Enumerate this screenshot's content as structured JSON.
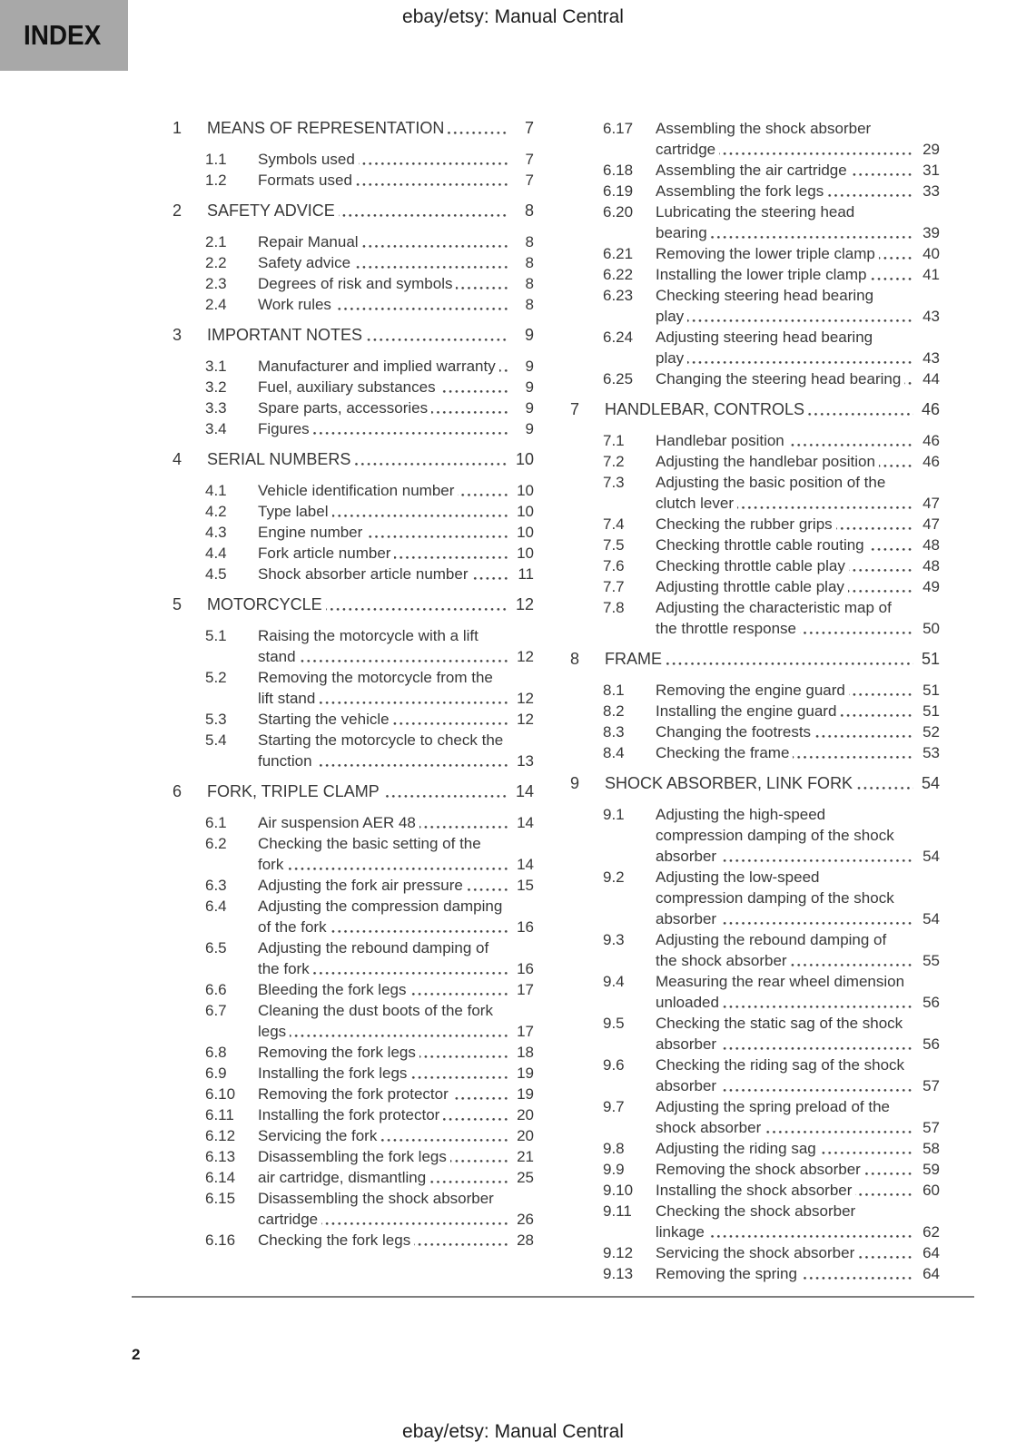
{
  "page_label": "INDEX",
  "header": {
    "title": "ebay/etsy: Manual Central"
  },
  "footer": {
    "title": "ebay/etsy: Manual Central",
    "page_number": "2"
  },
  "colors": {
    "index_tab_bg": "#a8a8a8",
    "body_text": "#383838",
    "rule": "#7e7e7e"
  },
  "toc": {
    "left_column": [
      {
        "num": "1",
        "title": "MEANS OF REPRESENTATION",
        "page": "7",
        "level": "chapter"
      },
      {
        "num": "1.1",
        "title": "Symbols used",
        "page": "7",
        "level": "item"
      },
      {
        "num": "1.2",
        "title": "Formats used",
        "page": "7",
        "level": "item"
      },
      {
        "num": "2",
        "title": "SAFETY ADVICE",
        "page": "8",
        "level": "chapter"
      },
      {
        "num": "2.1",
        "title": "Repair Manual",
        "page": "8",
        "level": "item"
      },
      {
        "num": "2.2",
        "title": "Safety advice",
        "page": "8",
        "level": "item"
      },
      {
        "num": "2.3",
        "title": "Degrees of risk and symbols",
        "page": "8",
        "level": "item"
      },
      {
        "num": "2.4",
        "title": "Work rules",
        "page": "8",
        "level": "item"
      },
      {
        "num": "3",
        "title": "IMPORTANT NOTES",
        "page": "9",
        "level": "chapter"
      },
      {
        "num": "3.1",
        "title": "Manufacturer and implied warranty",
        "page": "9",
        "level": "item"
      },
      {
        "num": "3.2",
        "title": "Fuel, auxiliary substances",
        "page": "9",
        "level": "item"
      },
      {
        "num": "3.3",
        "title": "Spare parts, accessories",
        "page": "9",
        "level": "item"
      },
      {
        "num": "3.4",
        "title": "Figures",
        "page": "9",
        "level": "item"
      },
      {
        "num": "4",
        "title": "SERIAL NUMBERS",
        "page": "10",
        "level": "chapter"
      },
      {
        "num": "4.1",
        "title": "Vehicle identification number",
        "page": "10",
        "level": "item"
      },
      {
        "num": "4.2",
        "title": "Type label",
        "page": "10",
        "level": "item"
      },
      {
        "num": "4.3",
        "title": "Engine number",
        "page": "10",
        "level": "item"
      },
      {
        "num": "4.4",
        "title": "Fork article number",
        "page": "10",
        "level": "item"
      },
      {
        "num": "4.5",
        "title": "Shock absorber article number",
        "page": "11",
        "level": "item"
      },
      {
        "num": "5",
        "title": "MOTORCYCLE",
        "page": "12",
        "level": "chapter"
      },
      {
        "num": "5.1",
        "title": "Raising the motorcycle with a lift\nstand",
        "page": "12",
        "level": "item"
      },
      {
        "num": "5.2",
        "title": "Removing the motorcycle from the\nlift stand",
        "page": "12",
        "level": "item"
      },
      {
        "num": "5.3",
        "title": "Starting the vehicle",
        "page": "12",
        "level": "item"
      },
      {
        "num": "5.4",
        "title": "Starting the motorcycle to check the\nfunction",
        "page": "13",
        "level": "item"
      },
      {
        "num": "6",
        "title": "FORK, TRIPLE CLAMP",
        "page": "14",
        "level": "chapter"
      },
      {
        "num": "6.1",
        "title": "Air suspension AER 48",
        "page": "14",
        "level": "item"
      },
      {
        "num": "6.2",
        "title": "Checking the basic setting of the\nfork",
        "page": "14",
        "level": "item"
      },
      {
        "num": "6.3",
        "title": "Adjusting the fork air pressure",
        "page": "15",
        "level": "item"
      },
      {
        "num": "6.4",
        "title": "Adjusting the compression damping\nof the fork",
        "page": "16",
        "level": "item"
      },
      {
        "num": "6.5",
        "title": "Adjusting the rebound damping of\nthe fork",
        "page": "16",
        "level": "item"
      },
      {
        "num": "6.6",
        "title": "Bleeding the fork legs",
        "page": "17",
        "level": "item"
      },
      {
        "num": "6.7",
        "title": "Cleaning the dust boots of the fork\nlegs",
        "page": "17",
        "level": "item"
      },
      {
        "num": "6.8",
        "title": "Removing the fork legs",
        "page": "18",
        "level": "item"
      },
      {
        "num": "6.9",
        "title": "Installing the fork legs",
        "page": "19",
        "level": "item"
      },
      {
        "num": "6.10",
        "title": "Removing the fork protector",
        "page": "19",
        "level": "item"
      },
      {
        "num": "6.11",
        "title": "Installing the fork protector",
        "page": "20",
        "level": "item"
      },
      {
        "num": "6.12",
        "title": "Servicing the fork",
        "page": "20",
        "level": "item"
      },
      {
        "num": "6.13",
        "title": "Disassembling the fork legs",
        "page": "21",
        "level": "item"
      },
      {
        "num": "6.14",
        "title": "air cartridge, dismantling",
        "page": "25",
        "level": "item"
      },
      {
        "num": "6.15",
        "title": "Disassembling the shock absorber\ncartridge",
        "page": "26",
        "level": "item"
      },
      {
        "num": "6.16",
        "title": "Checking the fork legs",
        "page": "28",
        "level": "item"
      }
    ],
    "right_column": [
      {
        "num": "6.17",
        "title": "Assembling the shock absorber\ncartridge",
        "page": "29",
        "level": "item"
      },
      {
        "num": "6.18",
        "title": "Assembling the air cartridge",
        "page": "31",
        "level": "item"
      },
      {
        "num": "6.19",
        "title": "Assembling the fork legs",
        "page": "33",
        "level": "item"
      },
      {
        "num": "6.20",
        "title": "Lubricating the steering head\nbearing",
        "page": "39",
        "level": "item"
      },
      {
        "num": "6.21",
        "title": "Removing the lower triple clamp",
        "page": "40",
        "level": "item"
      },
      {
        "num": "6.22",
        "title": "Installing the lower triple clamp",
        "page": "41",
        "level": "item"
      },
      {
        "num": "6.23",
        "title": "Checking steering head bearing\nplay",
        "page": "43",
        "level": "item"
      },
      {
        "num": "6.24",
        "title": "Adjusting steering head bearing\nplay",
        "page": "43",
        "level": "item"
      },
      {
        "num": "6.25",
        "title": "Changing the steering head bearing",
        "page": "44",
        "level": "item"
      },
      {
        "num": "7",
        "title": "HANDLEBAR, CONTROLS",
        "page": "46",
        "level": "chapter"
      },
      {
        "num": "7.1",
        "title": "Handlebar position",
        "page": "46",
        "level": "item"
      },
      {
        "num": "7.2",
        "title": "Adjusting the handlebar position",
        "page": "46",
        "level": "item"
      },
      {
        "num": "7.3",
        "title": "Adjusting the basic position of the\nclutch lever",
        "page": "47",
        "level": "item"
      },
      {
        "num": "7.4",
        "title": "Checking the rubber grips",
        "page": "47",
        "level": "item"
      },
      {
        "num": "7.5",
        "title": "Checking throttle cable routing",
        "page": "48",
        "level": "item"
      },
      {
        "num": "7.6",
        "title": "Checking throttle cable play",
        "page": "48",
        "level": "item"
      },
      {
        "num": "7.7",
        "title": "Adjusting throttle cable play",
        "page": "49",
        "level": "item"
      },
      {
        "num": "7.8",
        "title": "Adjusting the characteristic map of\nthe throttle response",
        "page": "50",
        "level": "item"
      },
      {
        "num": "8",
        "title": "FRAME",
        "page": "51",
        "level": "chapter"
      },
      {
        "num": "8.1",
        "title": "Removing the engine guard",
        "page": "51",
        "level": "item"
      },
      {
        "num": "8.2",
        "title": "Installing the engine guard",
        "page": "51",
        "level": "item"
      },
      {
        "num": "8.3",
        "title": "Changing the footrests",
        "page": "52",
        "level": "item"
      },
      {
        "num": "8.4",
        "title": "Checking the frame",
        "page": "53",
        "level": "item"
      },
      {
        "num": "9",
        "title": "SHOCK ABSORBER, LINK FORK",
        "page": "54",
        "level": "chapter"
      },
      {
        "num": "9.1",
        "title": "Adjusting the high-speed\ncompression damping of the shock\nabsorber",
        "page": "54",
        "level": "item"
      },
      {
        "num": "9.2",
        "title": "Adjusting the low-speed\ncompression damping of the shock\nabsorber",
        "page": "54",
        "level": "item"
      },
      {
        "num": "9.3",
        "title": "Adjusting the rebound damping of\nthe shock absorber",
        "page": "55",
        "level": "item"
      },
      {
        "num": "9.4",
        "title": "Measuring the rear wheel dimension\nunloaded",
        "page": "56",
        "level": "item"
      },
      {
        "num": "9.5",
        "title": "Checking the static sag of the shock\nabsorber",
        "page": "56",
        "level": "item"
      },
      {
        "num": "9.6",
        "title": "Checking the riding sag of the shock\nabsorber",
        "page": "57",
        "level": "item"
      },
      {
        "num": "9.7",
        "title": "Adjusting the spring preload of the\nshock absorber",
        "page": "57",
        "level": "item"
      },
      {
        "num": "9.8",
        "title": "Adjusting the riding sag",
        "page": "58",
        "level": "item"
      },
      {
        "num": "9.9",
        "title": "Removing the shock absorber",
        "page": "59",
        "level": "item"
      },
      {
        "num": "9.10",
        "title": "Installing the shock absorber",
        "page": "60",
        "level": "item"
      },
      {
        "num": "9.11",
        "title": "Checking the shock absorber\nlinkage",
        "page": "62",
        "level": "item"
      },
      {
        "num": "9.12",
        "title": "Servicing the shock absorber",
        "page": "64",
        "level": "item"
      },
      {
        "num": "9.13",
        "title": "Removing the spring",
        "page": "64",
        "level": "item"
      }
    ]
  }
}
